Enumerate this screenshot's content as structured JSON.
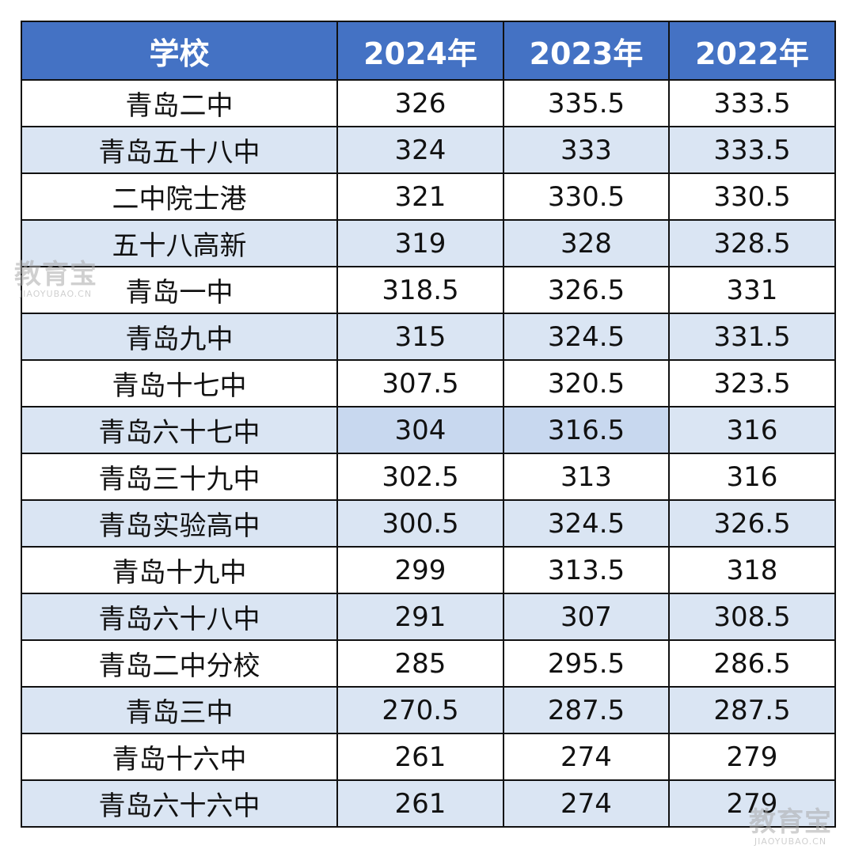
{
  "table": {
    "headers": [
      "学校",
      "2024年",
      "2023年",
      "2022年"
    ],
    "rows": [
      [
        "青岛二中",
        "326",
        "335.5",
        "333.5"
      ],
      [
        "青岛五十八中",
        "324",
        "333",
        "333.5"
      ],
      [
        "二中院士港",
        "321",
        "330.5",
        "330.5"
      ],
      [
        "五十八高新",
        "319",
        "328",
        "328.5"
      ],
      [
        "青岛一中",
        "318.5",
        "326.5",
        "331"
      ],
      [
        "青岛九中",
        "315",
        "324.5",
        "331.5"
      ],
      [
        "青岛十七中",
        "307.5",
        "320.5",
        "323.5"
      ],
      [
        "青岛六十七中",
        "304",
        "316.5",
        "316"
      ],
      [
        "青岛三十九中",
        "302.5",
        "313",
        "316"
      ],
      [
        "青岛实验高中",
        "300.5",
        "324.5",
        "326.5"
      ],
      [
        "青岛十九中",
        "299",
        "313.5",
        "318"
      ],
      [
        "青岛六十八中",
        "291",
        "307",
        "308.5"
      ],
      [
        "青岛二中分校",
        "285",
        "295.5",
        "286.5"
      ],
      [
        "青岛三中",
        "270.5",
        "287.5",
        "287.5"
      ],
      [
        "青岛十六中",
        "261",
        "274",
        "279"
      ],
      [
        "青岛六十六中",
        "261",
        "274",
        "279"
      ]
    ]
  },
  "watermark": {
    "main": "教育宝",
    "sub": "JIAOYUBAO.CN"
  },
  "colors": {
    "header_bg": "#4472c4",
    "header_text": "#ffffff",
    "stripe_bg": "#dae5f3",
    "highlight_bg": "#c8d8ef",
    "border": "#111111"
  }
}
